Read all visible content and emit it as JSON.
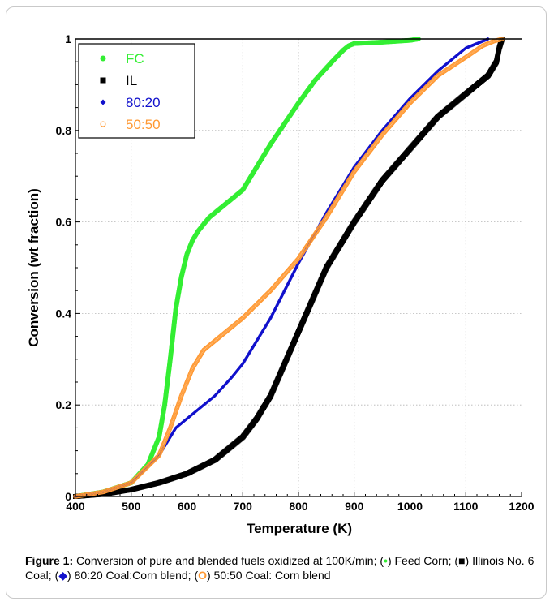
{
  "chart_data": {
    "type": "scatter",
    "title": "",
    "xlabel": "Temperature (K)",
    "ylabel": "Conversion (wt fraction)",
    "xlim": [
      400,
      1200
    ],
    "ylim": [
      0,
      1
    ],
    "x_ticks": [
      "400",
      "500",
      "600",
      "700",
      "800",
      "900",
      "1000",
      "1100",
      "1200"
    ],
    "y_ticks": [
      "0",
      "0.2",
      "0.4",
      "0.6",
      "0.8",
      "1"
    ],
    "grid": true,
    "legend": "top-left",
    "series": [
      {
        "name": "FC",
        "color": "#33ee33",
        "marker": "circle",
        "x": [
          400,
          450,
          500,
          530,
          550,
          560,
          570,
          580,
          590,
          600,
          610,
          620,
          640,
          660,
          700,
          720,
          750,
          800,
          830,
          860,
          880,
          890,
          900,
          950,
          1000,
          1015
        ],
        "y": [
          0,
          0.01,
          0.03,
          0.07,
          0.13,
          0.2,
          0.3,
          0.41,
          0.48,
          0.53,
          0.56,
          0.58,
          0.61,
          0.63,
          0.67,
          0.71,
          0.77,
          0.86,
          0.91,
          0.95,
          0.975,
          0.985,
          0.99,
          0.993,
          0.997,
          1.0
        ]
      },
      {
        "name": "IL",
        "color": "#000000",
        "marker": "square",
        "x": [
          400,
          450,
          500,
          550,
          600,
          650,
          700,
          725,
          750,
          775,
          800,
          825,
          850,
          900,
          950,
          1000,
          1050,
          1100,
          1140,
          1155,
          1160,
          1165
        ],
        "y": [
          0,
          0.005,
          0.015,
          0.03,
          0.05,
          0.08,
          0.13,
          0.17,
          0.22,
          0.29,
          0.36,
          0.43,
          0.5,
          0.6,
          0.69,
          0.76,
          0.83,
          0.88,
          0.92,
          0.95,
          0.98,
          1.0
        ]
      },
      {
        "name": "80:20",
        "color": "#1111cc",
        "marker": "diamond",
        "x": [
          400,
          450,
          500,
          550,
          580,
          600,
          620,
          650,
          680,
          700,
          750,
          800,
          850,
          900,
          950,
          1000,
          1050,
          1080,
          1100,
          1120,
          1140
        ],
        "y": [
          0,
          0.01,
          0.03,
          0.09,
          0.15,
          0.17,
          0.19,
          0.22,
          0.26,
          0.29,
          0.39,
          0.51,
          0.62,
          0.72,
          0.8,
          0.87,
          0.93,
          0.96,
          0.98,
          0.99,
          1.0
        ]
      },
      {
        "name": "50:50",
        "color": "#ff9933",
        "marker": "open-circle",
        "x": [
          400,
          450,
          500,
          550,
          570,
          590,
          610,
          630,
          650,
          700,
          750,
          800,
          850,
          900,
          950,
          1000,
          1050,
          1100,
          1130,
          1150,
          1165
        ],
        "y": [
          0,
          0.01,
          0.03,
          0.09,
          0.15,
          0.22,
          0.28,
          0.32,
          0.34,
          0.39,
          0.45,
          0.52,
          0.61,
          0.71,
          0.79,
          0.86,
          0.92,
          0.96,
          0.985,
          0.995,
          1.0
        ]
      }
    ]
  },
  "caption": {
    "label": "Figure 1:",
    "text_1": " Conversion of pure and blended fuels oxidized at 100K/min; (",
    "sym_fc": "•",
    "text_2": ") Feed Corn; (",
    "sym_il": "■",
    "text_3": ") Illinois No. 6 Coal; (",
    "sym_8020": "◆",
    "text_4": ") 80:20 Coal:Corn blend; (",
    "sym_5050": "O",
    "text_5": ") 50:50 Coal: Corn blend"
  }
}
